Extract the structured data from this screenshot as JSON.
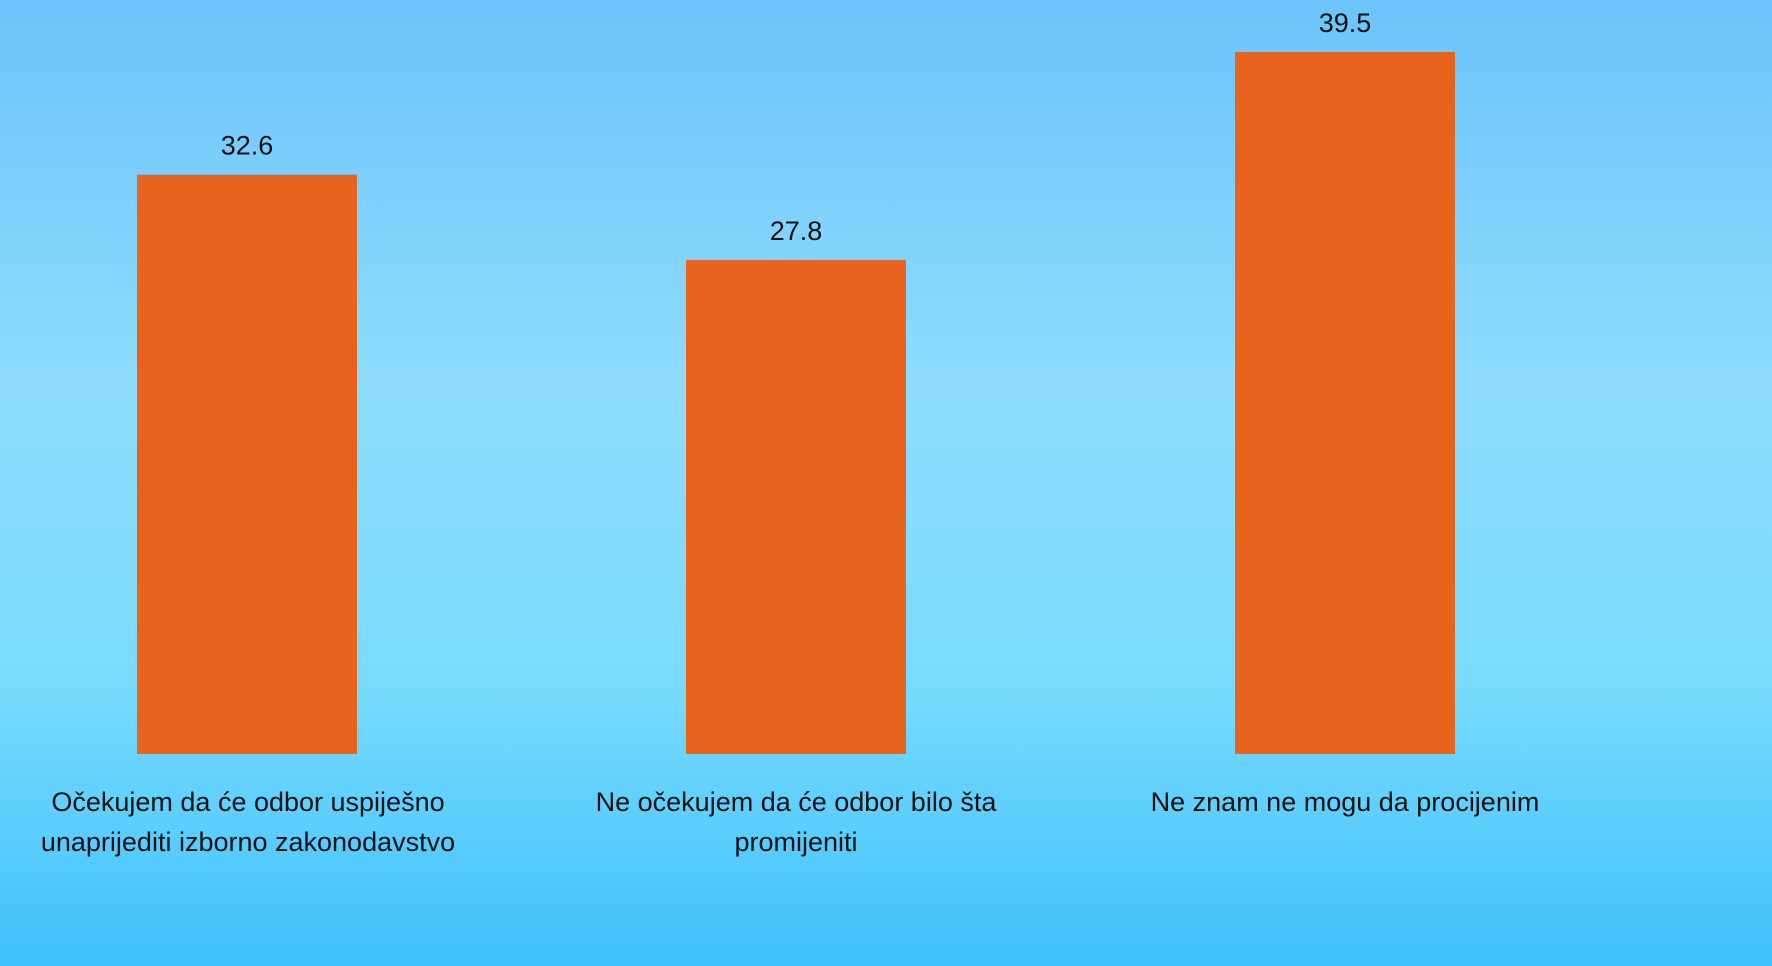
{
  "chart_data": {
    "type": "bar",
    "categories": [
      "Očekujem da će odbor uspiješno unaprijediti izborno zakonodavstvo",
      "Ne očekujem da će odbor bilo šta promijeniti",
      "Ne znam ne mogu da procijenim"
    ],
    "values": [
      32.6,
      27.8,
      39.5
    ],
    "color": "#e8641e"
  }
}
